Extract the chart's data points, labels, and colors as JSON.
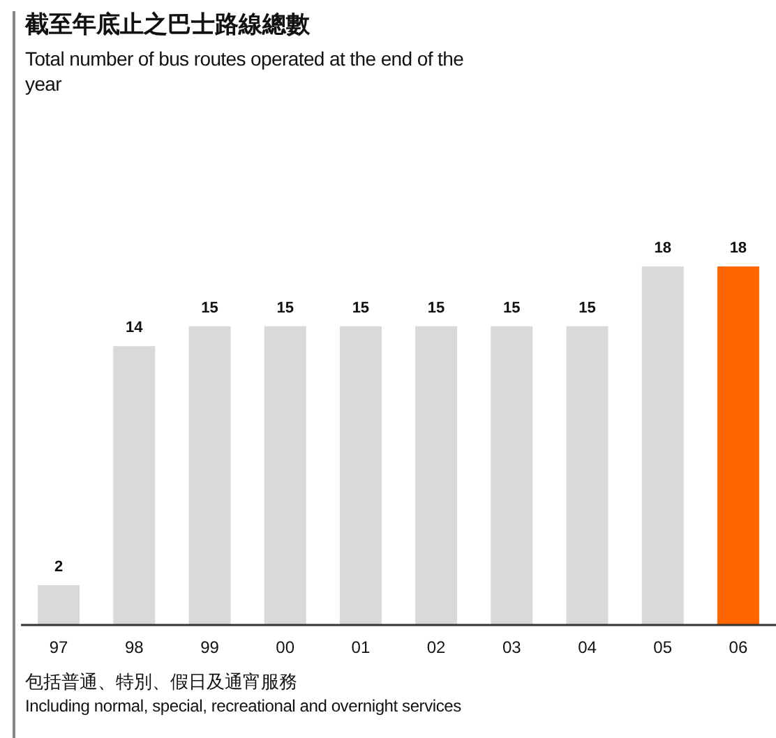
{
  "chart_data": {
    "type": "bar",
    "title": "截至年底止之巴士路線總數",
    "subtitle": "Total number of bus routes operated at the end of the year",
    "categories": [
      "97",
      "98",
      "99",
      "00",
      "01",
      "02",
      "03",
      "04",
      "05",
      "06"
    ],
    "values": [
      2,
      14,
      15,
      15,
      15,
      15,
      15,
      15,
      18,
      18
    ],
    "colors": [
      "#d9d9d9",
      "#d9d9d9",
      "#d9d9d9",
      "#d9d9d9",
      "#d9d9d9",
      "#d9d9d9",
      "#d9d9d9",
      "#d9d9d9",
      "#d9d9d9",
      "#ff6600"
    ],
    "data_labels": true,
    "annotations": [
      "包括普通、特別、假日及通宵服務",
      "Including normal, special, recreational and overnight services"
    ]
  }
}
